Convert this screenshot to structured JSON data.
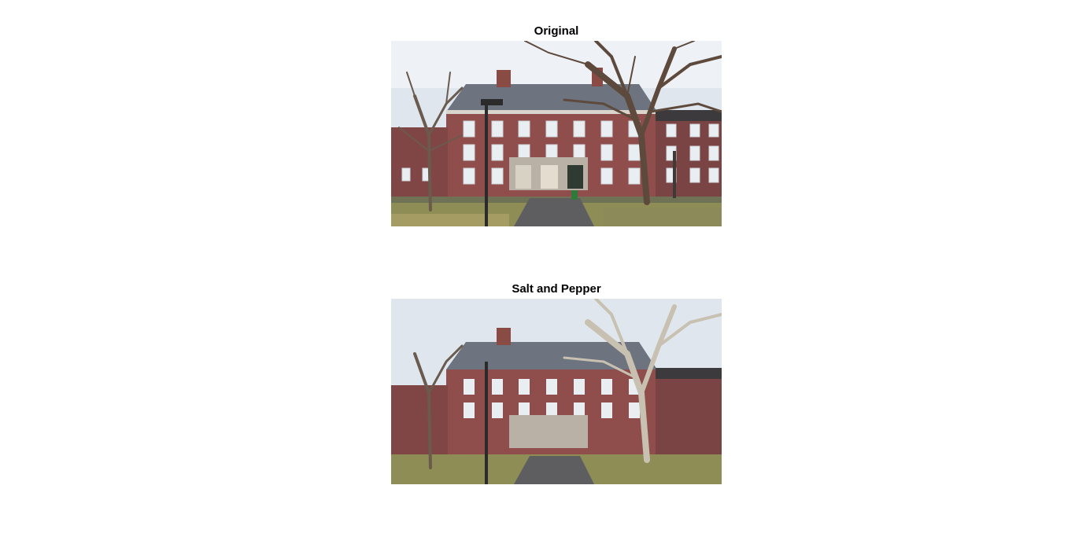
{
  "figure": {
    "panels": [
      {
        "title": "Original"
      },
      {
        "title": "Salt and Pepper"
      }
    ]
  }
}
